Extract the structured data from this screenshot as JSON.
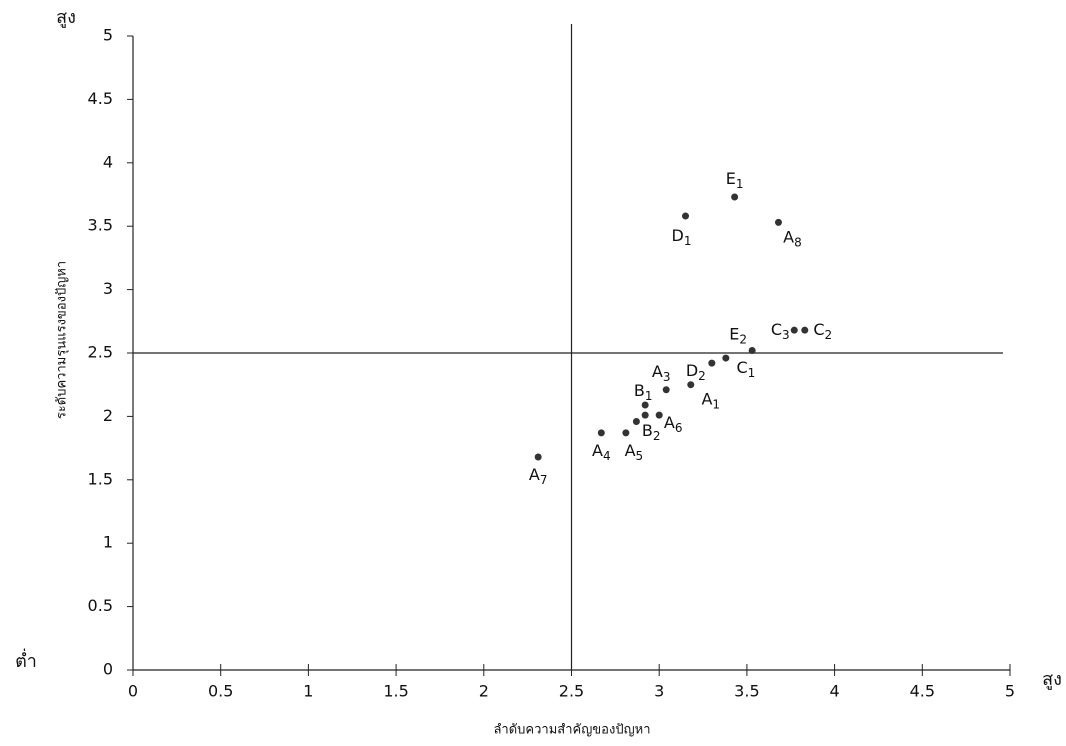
{
  "chart_data": {
    "type": "scatter",
    "x_label": "ลำดับความสำคัญของปัญหา",
    "y_label": "ระดับความรุนแรงของปัญหา",
    "corner_labels": {
      "y_high": "สูง",
      "low": "ต่ำ",
      "x_high": "สูง"
    },
    "labels": [
      "A1",
      null,
      "A3",
      "A4",
      "A5",
      "A6",
      "A7",
      "A8",
      "B1",
      "B2",
      "C1",
      "C2",
      "C3",
      "D1",
      "D2",
      "E1",
      "E2"
    ],
    "x": [
      3.18,
      2.87,
      3.04,
      2.67,
      2.81,
      3.0,
      2.31,
      3.68,
      2.92,
      2.92,
      3.38,
      3.83,
      3.77,
      3.15,
      3.3,
      3.43,
      3.53
    ],
    "y": [
      2.25,
      1.96,
      2.21,
      1.87,
      1.87,
      2.01,
      1.68,
      3.53,
      2.09,
      2.01,
      2.46,
      2.68,
      2.68,
      3.58,
      2.42,
      3.73,
      2.52
    ],
    "color": "#333333",
    "xlim": [
      0,
      5
    ],
    "ylim": [
      0,
      5
    ],
    "xticks": [
      0,
      0.5,
      1,
      1.5,
      2,
      2.5,
      3,
      3.5,
      4,
      4.5,
      5
    ],
    "yticks": [
      0,
      0.5,
      1,
      1.5,
      2,
      2.5,
      3,
      3.5,
      4,
      4.5,
      5
    ],
    "reference_lines": {
      "x": 2.5,
      "y": 2.5
    },
    "grid": false
  }
}
